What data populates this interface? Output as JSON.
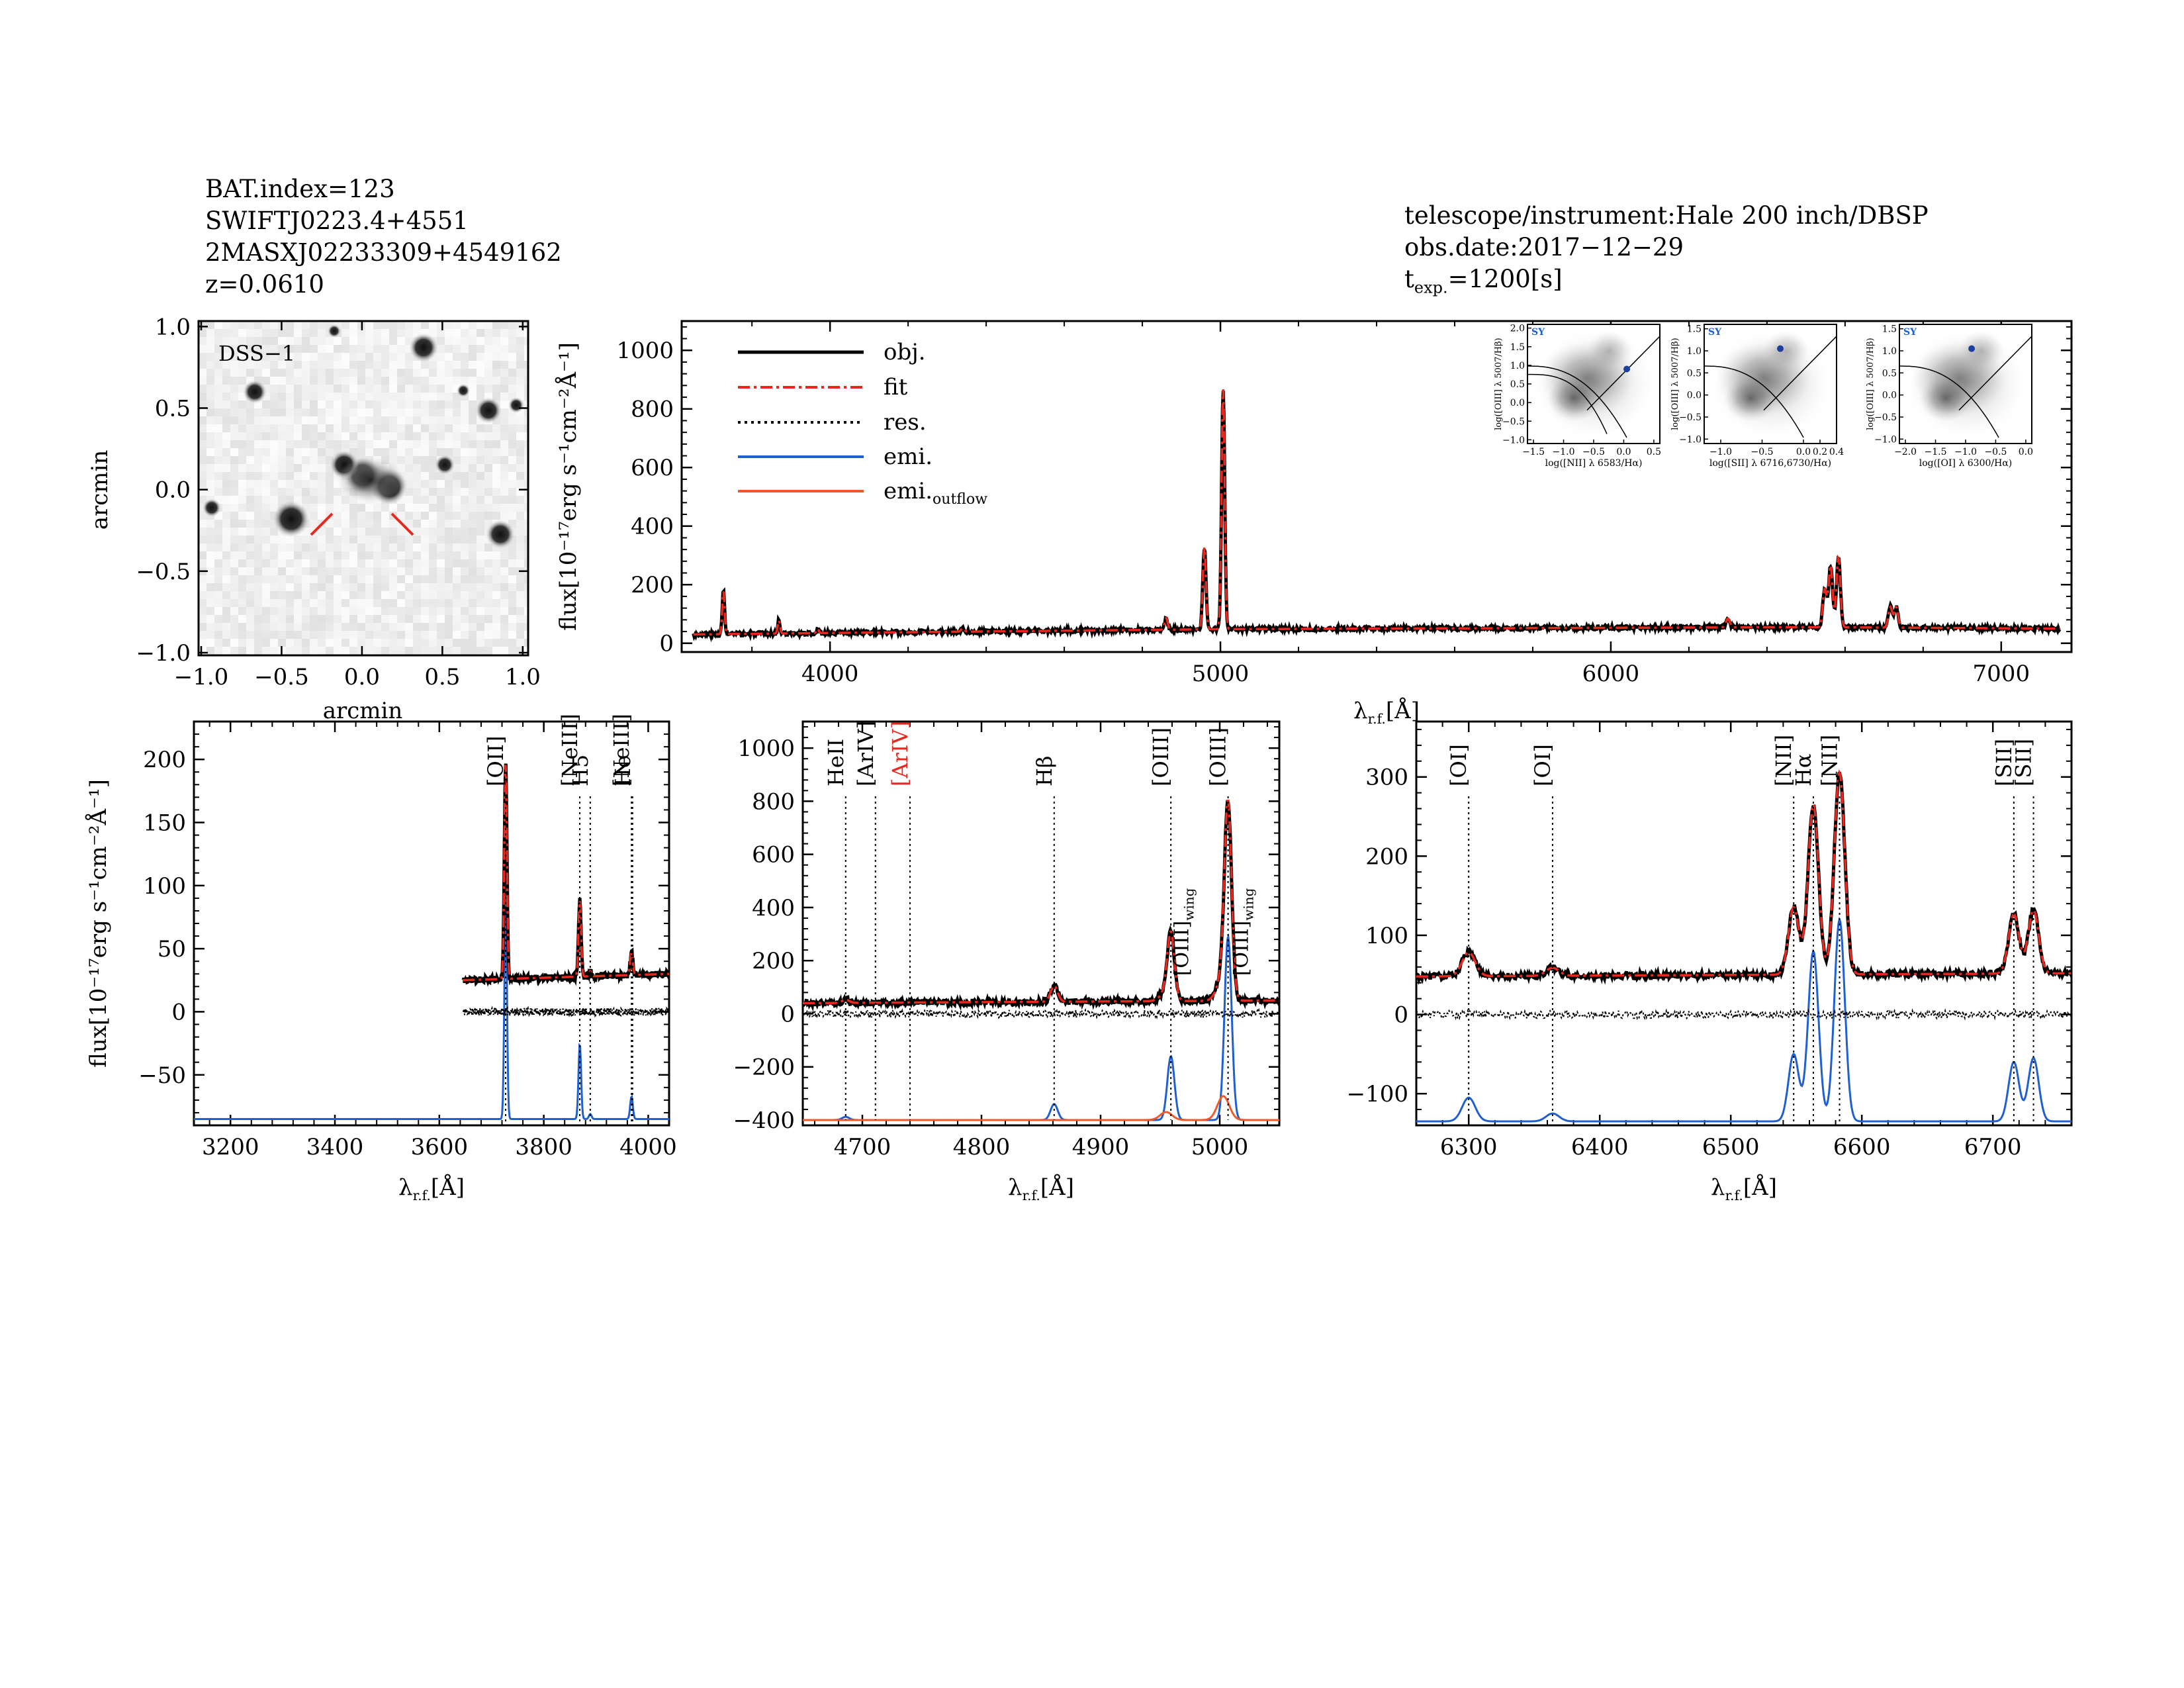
{
  "header_left": {
    "bat_index": "BAT.index=123",
    "swift_name": "SWIFTJ0223.4+4551",
    "counterpart": "2MASXJ02233309+4549162",
    "redshift": "z=0.0610"
  },
  "header_right": {
    "telescope": "telescope/instrument:Hale 200 inch/DBSP",
    "obs_date": "obs.date:2017−12−29",
    "texp_prefix": "t",
    "texp_sub": "exp.",
    "texp_value": "=1200[s]"
  },
  "colors": {
    "obj": "#000000",
    "fit": "#e8281e",
    "emi": "#1f5fd0",
    "outflow": "#f05a28",
    "ariv_red": "#e8281e"
  },
  "image_panel": {
    "label": "DSS−1",
    "xlabel": "arcmin",
    "ylabel": "arcmin",
    "ticks": [
      "−1.0",
      "−0.5",
      "0.0",
      "0.5",
      "1.0"
    ]
  },
  "legend": {
    "obj": "obj.",
    "fit": "fit",
    "res": "res.",
    "emi": "emi.",
    "outflow_prefix": "emi.",
    "outflow_sub": "outflow"
  },
  "chart_data": [
    {
      "id": "full",
      "type": "line",
      "xlim": [
        3620,
        7180
      ],
      "ylim": [
        -30,
        1100
      ],
      "xticks": [
        4000,
        5000,
        6000,
        7000
      ],
      "yticks": [
        0,
        200,
        400,
        600,
        800,
        1000
      ],
      "xlabel_main": "λ",
      "xlabel_sub": "r.f.",
      "xlabel_unit": "[Å]",
      "ylabel": "flux[10⁻¹⁷erg s⁻¹cm⁻²Å⁻¹]",
      "continuum": [
        [
          3650,
          30
        ],
        [
          4000,
          35
        ],
        [
          5000,
          48
        ],
        [
          6500,
          55
        ],
        [
          7150,
          50
        ]
      ],
      "lines": [
        {
          "x": 3727,
          "a": 150,
          "w": 3
        },
        {
          "x": 3869,
          "a": 45,
          "w": 3
        },
        {
          "x": 3968,
          "a": 15,
          "w": 3
        },
        {
          "x": 4340,
          "a": 12,
          "w": 4
        },
        {
          "x": 4861,
          "a": 40,
          "w": 4
        },
        {
          "x": 4959,
          "a": 280,
          "w": 4
        },
        {
          "x": 5007,
          "a": 820,
          "w": 4
        },
        {
          "x": 6300,
          "a": 30,
          "w": 5
        },
        {
          "x": 6548,
          "a": 130,
          "w": 5
        },
        {
          "x": 6563,
          "a": 210,
          "w": 5
        },
        {
          "x": 6583,
          "a": 240,
          "w": 5
        },
        {
          "x": 6716,
          "a": 70,
          "w": 5
        },
        {
          "x": 6731,
          "a": 70,
          "w": 5
        }
      ]
    },
    {
      "id": "oii",
      "type": "line",
      "xlim": [
        3130,
        4040
      ],
      "ylim": [
        -90,
        230
      ],
      "xticks": [
        3200,
        3400,
        3600,
        3800,
        4000
      ],
      "yticks": [
        -50,
        0,
        50,
        100,
        150,
        200
      ],
      "xlabel_main": "λ",
      "xlabel_sub": "r.f.",
      "xlabel_unit": "[Å]",
      "ylabel": "flux[10⁻¹⁷erg s⁻¹cm⁻²Å⁻¹]",
      "data_start": 3645,
      "continuum": [
        [
          3645,
          25
        ],
        [
          4040,
          30
        ]
      ],
      "residual_offset": 0,
      "emission_base": -85,
      "lines": [
        {
          "x": 3727,
          "a": 170,
          "w": 2.5
        },
        {
          "x": 3869,
          "a": 60,
          "w": 2.5
        },
        {
          "x": 3889,
          "a": 4,
          "w": 2.5
        },
        {
          "x": 3968,
          "a": 18,
          "w": 2.5
        }
      ],
      "outflows": [],
      "markers": [
        {
          "x": 3727,
          "label": "[OII]",
          "bracket": true
        },
        {
          "x": 3869,
          "label": "[NeIII]",
          "bracket": true
        },
        {
          "x": 3889,
          "label": "H5",
          "bracket": false
        },
        {
          "x": 3968,
          "label": "[NeIII]",
          "bracket": true
        },
        {
          "x": 3970,
          "label": "He",
          "bracket": false
        }
      ]
    },
    {
      "id": "hb",
      "type": "line",
      "xlim": [
        4650,
        5050
      ],
      "ylim": [
        -420,
        1100
      ],
      "xticks": [
        4700,
        4800,
        4900,
        5000
      ],
      "yticks": [
        -400,
        -200,
        0,
        200,
        400,
        600,
        800,
        1000
      ],
      "xlabel_main": "λ",
      "xlabel_sub": "r.f.",
      "xlabel_unit": "[Å]",
      "data_start": 4650,
      "continuum": [
        [
          4650,
          40
        ],
        [
          5050,
          50
        ]
      ],
      "residual_offset": 0,
      "emission_base": -400,
      "lines": [
        {
          "x": 4686,
          "a": 12,
          "w": 3
        },
        {
          "x": 4861,
          "a": 60,
          "w": 3
        },
        {
          "x": 4959,
          "a": 240,
          "w": 3
        },
        {
          "x": 5007,
          "a": 690,
          "w": 3
        }
      ],
      "outflows": [
        {
          "x": 4955,
          "a": 30,
          "w": 5
        },
        {
          "x": 5003,
          "a": 90,
          "w": 5
        }
      ],
      "markers": [
        {
          "x": 4686,
          "label": "HeII",
          "bracket": false
        },
        {
          "x": 4711,
          "label": "[ArIV]",
          "bracket": true
        },
        {
          "x": 4740,
          "label": "[ArIV]",
          "bracket": true,
          "red": true
        },
        {
          "x": 4861,
          "label": "Hβ",
          "bracket": false
        },
        {
          "x": 4959,
          "label": "[OIII]",
          "bracket": true
        },
        {
          "x": 5007,
          "label": "[OIII]",
          "bracket": true
        }
      ],
      "wing_labels": [
        {
          "x": 4967,
          "label": "[OIII]",
          "sub": "wing"
        },
        {
          "x": 5017,
          "label": "[OIII]",
          "sub": "wing"
        }
      ]
    },
    {
      "id": "ha",
      "type": "line",
      "xlim": [
        6260,
        6760
      ],
      "ylim": [
        -140,
        370
      ],
      "xticks": [
        6300,
        6400,
        6500,
        6600,
        6700
      ],
      "yticks": [
        -100,
        0,
        100,
        200,
        300
      ],
      "xlabel_main": "λ",
      "xlabel_sub": "r.f.",
      "xlabel_unit": "[Å]",
      "data_start": 6260,
      "continuum": [
        [
          6260,
          48
        ],
        [
          6760,
          52
        ]
      ],
      "residual_offset": 0,
      "emission_base": -135,
      "lines": [
        {
          "x": 6300,
          "a": 30,
          "w": 5
        },
        {
          "x": 6364,
          "a": 10,
          "w": 5
        },
        {
          "x": 6548,
          "a": 85,
          "w": 4
        },
        {
          "x": 6563,
          "a": 215,
          "w": 4
        },
        {
          "x": 6583,
          "a": 255,
          "w": 4
        },
        {
          "x": 6716,
          "a": 75,
          "w": 4
        },
        {
          "x": 6731,
          "a": 80,
          "w": 4
        }
      ],
      "outflows": [],
      "markers": [
        {
          "x": 6300,
          "label": "[OI]",
          "bracket": true
        },
        {
          "x": 6364,
          "label": "[OI]",
          "bracket": true
        },
        {
          "x": 6548,
          "label": "[NII]",
          "bracket": true
        },
        {
          "x": 6563,
          "label": "Hα",
          "bracket": false
        },
        {
          "x": 6583,
          "label": "[NII]",
          "bracket": true
        },
        {
          "x": 6716,
          "label": "[SII]",
          "bracket": true
        },
        {
          "x": 6731,
          "label": "[SII]",
          "bracket": true
        }
      ]
    }
  ],
  "bpt": [
    {
      "id": "nii",
      "badge": "SY",
      "xlabel": "log([NII] λ 6583/Hα)",
      "ylabel": "log([OIII] λ 5007/Hβ)",
      "xlim": [
        -1.6,
        0.6
      ],
      "ylim": [
        -1.1,
        2.1
      ],
      "xticks": [
        "−1.5",
        "−1.0",
        "−0.5",
        "0.0",
        "0.5"
      ],
      "xtick_values": [
        -1.5,
        -1.0,
        -0.5,
        0.0,
        0.5
      ],
      "yticks": [
        "−1.0",
        "−0.5",
        "0.0",
        "0.5",
        "1.0",
        "1.5",
        "2.0"
      ],
      "ytick_values": [
        -1.0,
        -0.5,
        0.0,
        0.5,
        1.0,
        1.5,
        2.0
      ],
      "point": [
        0.05,
        0.9
      ]
    },
    {
      "id": "sii",
      "badge": "SY",
      "xlabel": "log([SII] λ 6716,6730/Hα)",
      "ylabel": "log([OIII] λ 5007/Hβ)",
      "xlim": [
        -1.2,
        0.4
      ],
      "ylim": [
        -1.1,
        1.6
      ],
      "xticks": [
        "−1.0",
        "−0.5",
        "0.0",
        "0.2",
        "0.4"
      ],
      "xtick_values": [
        -1.0,
        -0.5,
        0.0,
        0.2,
        0.4
      ],
      "yticks": [
        "−1.0",
        "−0.5",
        "0.0",
        "0.5",
        "1.0",
        "1.5"
      ],
      "ytick_values": [
        -1.0,
        -0.5,
        0.0,
        0.5,
        1.0,
        1.5
      ],
      "point": [
        -0.28,
        1.05
      ]
    },
    {
      "id": "oi",
      "badge": "SY",
      "xlabel": "log([OI] λ 6300/Hα)",
      "ylabel": "log([OIII] λ 5007/Hβ)",
      "xlim": [
        -2.1,
        0.1
      ],
      "ylim": [
        -1.1,
        1.6
      ],
      "xticks": [
        "−2.0",
        "−1.5",
        "−1.0",
        "−0.5",
        "0.0"
      ],
      "xtick_values": [
        -2.0,
        -1.5,
        -1.0,
        -0.5,
        0.0
      ],
      "yticks": [
        "−1.0",
        "−0.5",
        "0.0",
        "0.5",
        "1.0",
        "1.5"
      ],
      "ytick_values": [
        -1.0,
        -0.5,
        0.0,
        0.5,
        1.0,
        1.5
      ],
      "point": [
        -0.9,
        1.05
      ]
    }
  ]
}
